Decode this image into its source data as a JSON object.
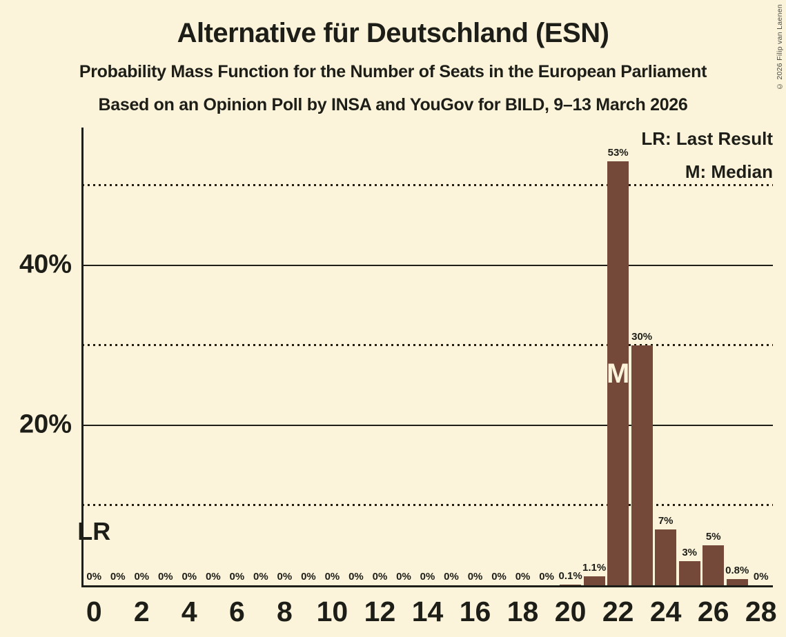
{
  "title": "Alternative für Deutschland (ESN)",
  "subtitle1": "Probability Mass Function for the Number of Seats in the European Parliament",
  "subtitle2": "Based on an Opinion Poll by INSA and YouGov for BILD, 9–13 March 2026",
  "copyright": "© 2026 Filip van Laenen",
  "legend": {
    "last_result": "LR: Last Result",
    "median": "M: Median"
  },
  "annotations": {
    "lr_label": "LR",
    "median_label": "M",
    "last_result_seat": 0,
    "median_seat": 22
  },
  "colors": {
    "background": "#FBF4DB",
    "bar": "#744939",
    "text": "#1E1E18"
  },
  "chart_data": {
    "type": "bar",
    "title": "Alternative für Deutschland (ESN)",
    "subtitle": "Probability Mass Function for the Number of Seats in the European Parliament",
    "source_line": "Based on an Opinion Poll by INSA and YouGov for BILD, 9–13 March 2026",
    "xlabel": "",
    "ylabel": "",
    "x": [
      0,
      1,
      2,
      3,
      4,
      5,
      6,
      7,
      8,
      9,
      10,
      11,
      12,
      13,
      14,
      15,
      16,
      17,
      18,
      19,
      20,
      21,
      22,
      23,
      24,
      25,
      26,
      27,
      28
    ],
    "values": [
      0,
      0,
      0,
      0,
      0,
      0,
      0,
      0,
      0,
      0,
      0,
      0,
      0,
      0,
      0,
      0,
      0,
      0,
      0,
      0,
      0.1,
      1.1,
      53,
      30,
      7,
      3,
      5,
      0.8,
      0
    ],
    "bar_labels": [
      "0%",
      "0%",
      "0%",
      "0%",
      "0%",
      "0%",
      "0%",
      "0%",
      "0%",
      "0%",
      "0%",
      "0%",
      "0%",
      "0%",
      "0%",
      "0%",
      "0%",
      "0%",
      "0%",
      "0%",
      "0.1%",
      "1.1%",
      "53%",
      "30%",
      "7%",
      "3%",
      "5%",
      "0.8%",
      "0%"
    ],
    "x_tick_labels": [
      "0",
      "2",
      "4",
      "6",
      "8",
      "10",
      "12",
      "14",
      "16",
      "18",
      "20",
      "22",
      "24",
      "26",
      "28"
    ],
    "x_tick_step": 2,
    "y_ticks": [
      {
        "pct": 20,
        "label": "20%"
      },
      {
        "pct": 40,
        "label": "40%"
      }
    ],
    "gridlines": {
      "solid_pct": [
        20,
        40
      ],
      "dotted_pct": [
        10,
        30,
        50
      ]
    },
    "ylim": [
      0,
      57.2
    ],
    "grid": true,
    "legend_position": "top-right",
    "median_seat": 22,
    "last_result_seat": 0
  }
}
